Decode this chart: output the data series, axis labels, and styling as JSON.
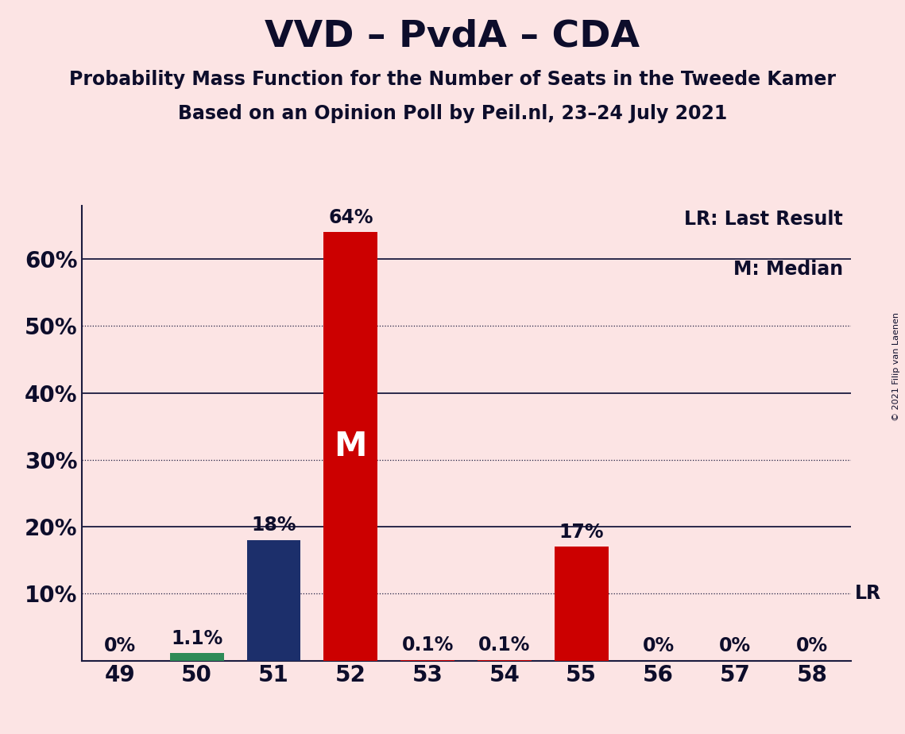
{
  "title": "VVD – PvdA – CDA",
  "subtitle1": "Probability Mass Function for the Number of Seats in the Tweede Kamer",
  "subtitle2": "Based on an Opinion Poll by Peil.nl, 23–24 July 2021",
  "copyright": "© 2021 Filip van Laenen",
  "legend_line1": "LR: Last Result",
  "legend_line2": "M: Median",
  "categories": [
    49,
    50,
    51,
    52,
    53,
    54,
    55,
    56,
    57,
    58
  ],
  "values": [
    0.0,
    1.1,
    18.0,
    64.0,
    0.1,
    0.1,
    17.0,
    0.0,
    0.0,
    0.0
  ],
  "labels": [
    "0%",
    "1.1%",
    "18%",
    "64%",
    "0.1%",
    "0.1%",
    "17%",
    "0%",
    "0%",
    "0%"
  ],
  "bar_colors": [
    "#cc0000",
    "#2e8b57",
    "#1c2f6b",
    "#cc0000",
    "#cc0000",
    "#cc0000",
    "#cc0000",
    "#cc0000",
    "#cc0000",
    "#cc0000"
  ],
  "median_bar_idx": 3,
  "median_label": "M",
  "lr_label": "LR",
  "background_color": "#fce4e4",
  "title_color": "#0d0d2b",
  "ylim": [
    0,
    68
  ],
  "solid_lines": [
    20,
    40,
    60
  ],
  "dotted_lines": [
    10,
    30,
    50
  ],
  "title_fontsize": 34,
  "subtitle_fontsize": 17,
  "label_fontsize": 17,
  "tick_fontsize": 20,
  "legend_fontsize": 17,
  "median_label_fontsize": 30,
  "lr_label_fontsize": 17,
  "bar_width": 0.7
}
